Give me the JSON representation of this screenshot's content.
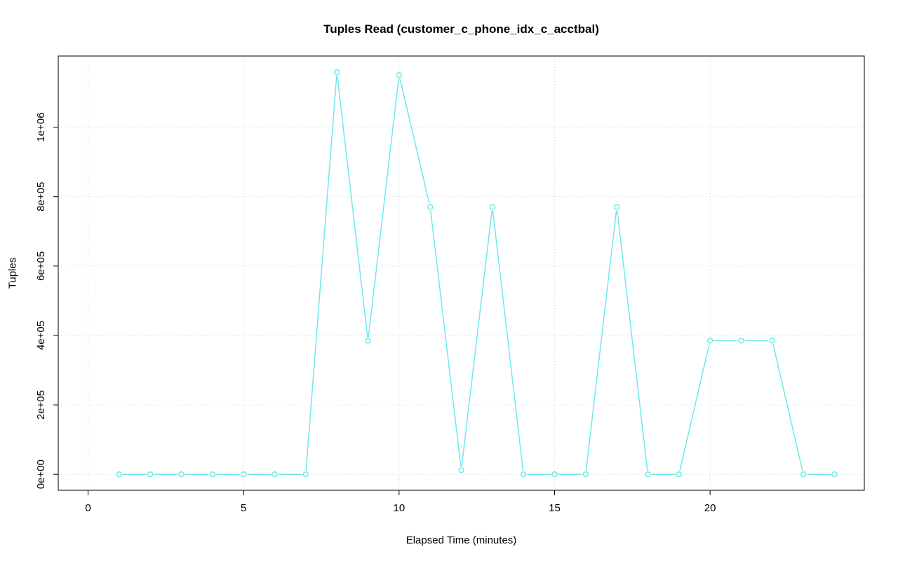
{
  "page": {
    "background": "#FFFFFF"
  },
  "chart_data": {
    "type": "line",
    "title": "Tuples Read (customer_c_phone_idx_c_acctbal)",
    "xlabel": "Elapsed Time (minutes)",
    "ylabel": "Tuples",
    "x": [
      1,
      2,
      3,
      4,
      5,
      6,
      7,
      8,
      9,
      10,
      11,
      12,
      13,
      14,
      15,
      16,
      17,
      18,
      19,
      20,
      21,
      22,
      23,
      24
    ],
    "y": [
      0,
      0,
      0,
      0,
      0,
      0,
      0,
      1158000,
      385000,
      1150000,
      770000,
      12000,
      770000,
      0,
      0,
      0,
      770000,
      0,
      0,
      385000,
      385000,
      385000,
      0,
      0
    ],
    "xlim": [
      -0.96,
      24.96
    ],
    "ylim": [
      -46000,
      1205000
    ],
    "xticks": {
      "values": [
        0,
        5,
        10,
        15,
        20
      ],
      "labels": [
        "0",
        "5",
        "10",
        "15",
        "20"
      ]
    },
    "yticks": {
      "values": [
        0,
        200000,
        400000,
        600000,
        800000,
        1000000
      ],
      "labels": [
        "0e+00",
        "2e+05",
        "4e+05",
        "6e+05",
        "8e+05",
        "1e+06"
      ]
    },
    "grid": true,
    "grid_color": "#D6D6D6",
    "axis_color": "#000000",
    "series_color": "#6FE8EA",
    "marker": "circle-open",
    "line_style": "points-and-segments"
  }
}
